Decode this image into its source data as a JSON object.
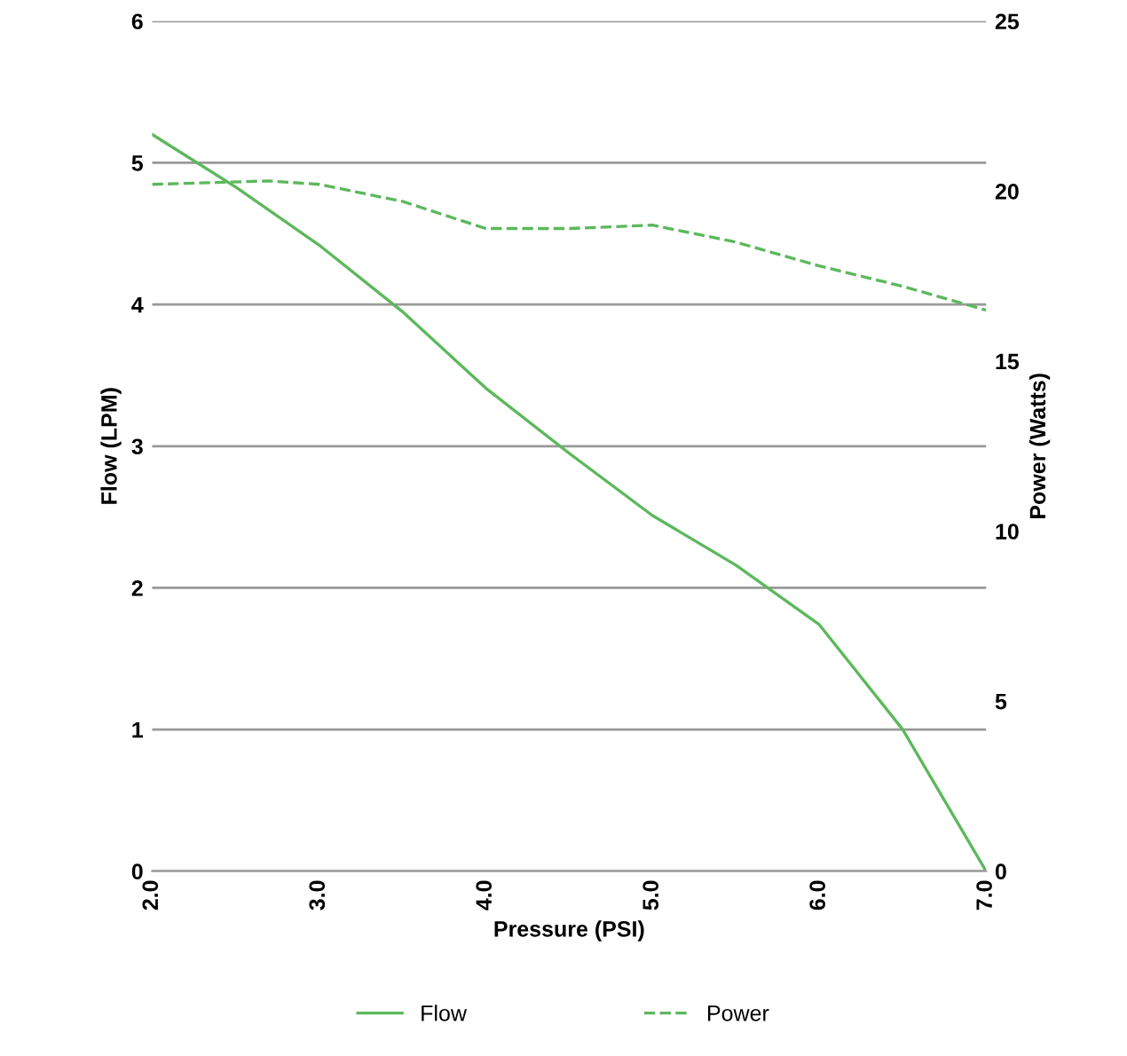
{
  "chart_data": {
    "type": "line",
    "xlabel": "Pressure (PSI)",
    "ylabel": "Flow (LPM)",
    "y2label": "Power (Watts)",
    "xlim": [
      2.0,
      7.0
    ],
    "xticks": [
      {
        "value": 2,
        "label": "2.0"
      },
      {
        "value": 3,
        "label": "3.0"
      },
      {
        "value": 4,
        "label": "4.0"
      },
      {
        "value": 5,
        "label": "5.0"
      },
      {
        "value": 6,
        "label": "6.0"
      },
      {
        "value": 7,
        "label": "7.0"
      }
    ],
    "ylim": [
      0,
      6
    ],
    "yticks": [
      0,
      1,
      2,
      3,
      4,
      5,
      6
    ],
    "y2lim": [
      0,
      25
    ],
    "y2ticks": [
      0,
      5,
      10,
      15,
      20,
      25
    ],
    "grid": "y",
    "legend": "bottom",
    "marker": "none",
    "series": [
      {
        "name": "Flow",
        "color": "#5cb85c",
        "line_style": "solid",
        "x": [
          2.0,
          2.5,
          3.0,
          3.5,
          4.0,
          4.5,
          5.0,
          5.5,
          6.0,
          6.5,
          7.0
        ],
        "values": [
          5.2,
          4.83,
          4.42,
          3.95,
          3.41,
          2.95,
          2.51,
          2.16,
          1.74,
          1.0,
          0
        ]
      },
      {
        "name": "Power",
        "color": "#5cb85c",
        "line_style": "dashed",
        "axis": "y2",
        "x": [
          2.0,
          2.7,
          3.0,
          3.5,
          4.0,
          4.5,
          5.0,
          5.5,
          6.0,
          6.5,
          7.0
        ],
        "values": [
          20.2,
          20.3,
          20.2,
          19.7,
          18.9,
          18.9,
          19.0,
          18.5,
          17.8,
          17.2,
          16.5
        ]
      }
    ]
  }
}
